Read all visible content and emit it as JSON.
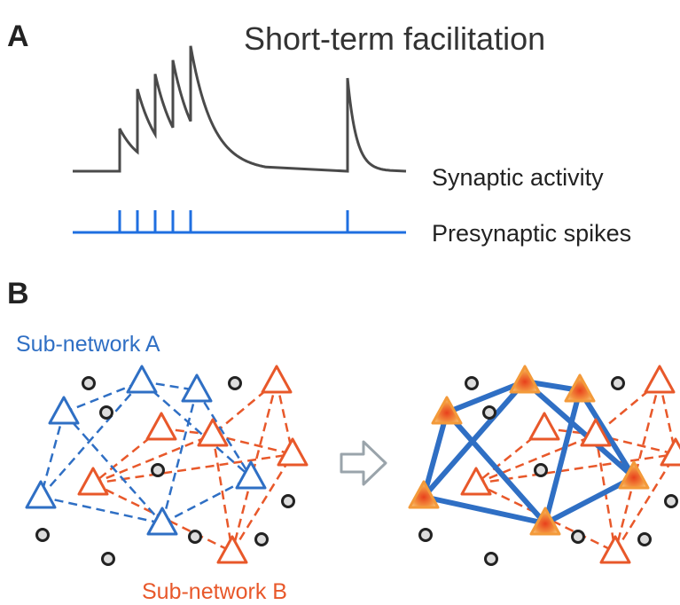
{
  "panel_a": {
    "label": "A",
    "title": "Short-term facilitation",
    "trace_label": "Synaptic activity",
    "spike_label": "Presynaptic spikes"
  },
  "panel_b": {
    "label": "B",
    "subnetwork_a": "Sub-network A",
    "subnetwork_b": "Sub-network B"
  }
}
